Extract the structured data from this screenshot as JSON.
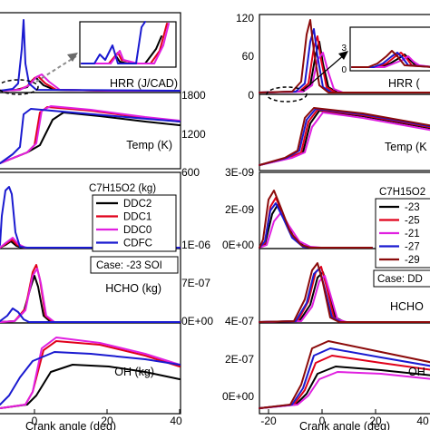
{
  "chart_data": [
    {
      "type": "line",
      "side": "left",
      "xlabel": "Crank angle (deg)",
      "x_ticks": [
        "0",
        "20",
        "40"
      ],
      "xlim": [
        -18,
        40
      ],
      "legend_title": "C7H15O2 (kg)",
      "case_label": "Case: -23 SOI",
      "series": [
        {
          "name": "DDC2",
          "color": "#000000"
        },
        {
          "name": "DDC1",
          "color": "#e0001a"
        },
        {
          "name": "DDC0",
          "color": "#e020e0"
        },
        {
          "name": "CDFC",
          "color": "#1a1ad0"
        }
      ],
      "panels": [
        {
          "id": "hrr",
          "label": "HRR (J/CAD)",
          "ylim": [
            0,
            120
          ]
        },
        {
          "id": "temp",
          "label": "Temp (K)",
          "ylim": [
            600,
            1800
          ],
          "right_ticks": [
            "1800",
            "1200",
            "600"
          ]
        },
        {
          "id": "c7",
          "label": "",
          "ylim": [
            0,
            1e-06
          ],
          "right_ticks": [
            "1E-06"
          ]
        },
        {
          "id": "hcho",
          "label": "HCHO (kg)",
          "ylim": [
            0,
            7e-07
          ],
          "right_ticks": [
            "7E-07",
            "0E+00"
          ]
        },
        {
          "id": "oh",
          "label": "OH (kg)",
          "ylim": [
            0,
            3e-07
          ]
        }
      ]
    },
    {
      "type": "line",
      "side": "right",
      "xlabel": "Crank angle (deg)",
      "x_ticks": [
        "-20",
        "0",
        "20",
        "40"
      ],
      "xlim": [
        -20,
        40
      ],
      "legend_title": "C7H15O2",
      "case_label": "Case: DD",
      "series": [
        {
          "name": "-23",
          "color": "#000000"
        },
        {
          "name": "-25",
          "color": "#e0001a"
        },
        {
          "name": "-21",
          "color": "#e020e0"
        },
        {
          "name": "-27",
          "color": "#1a1ad0"
        },
        {
          "name": "-29",
          "color": "#8b0a0a"
        }
      ],
      "panels": [
        {
          "id": "hrr",
          "label": "HRR (",
          "ylim": [
            0,
            120
          ],
          "left_ticks": [
            "120",
            "60",
            "0"
          ]
        },
        {
          "id": "temp",
          "label": "Temp (K",
          "ylim": [
            600,
            1800
          ]
        },
        {
          "id": "c7",
          "label": "",
          "ylim": [
            0,
            3e-09
          ],
          "left_ticks": [
            "3E-09",
            "2E-09",
            "0E+00"
          ]
        },
        {
          "id": "hcho",
          "label": "HCHO",
          "ylim": [
            0,
            4e-07
          ],
          "left_ticks": [
            "4E-07"
          ]
        },
        {
          "id": "oh",
          "label": "OH",
          "ylim": [
            0,
            3e-07
          ],
          "left_ticks": [
            "2E-07",
            "0E+00"
          ]
        }
      ],
      "inset_ticks": [
        "3",
        "0"
      ]
    }
  ]
}
